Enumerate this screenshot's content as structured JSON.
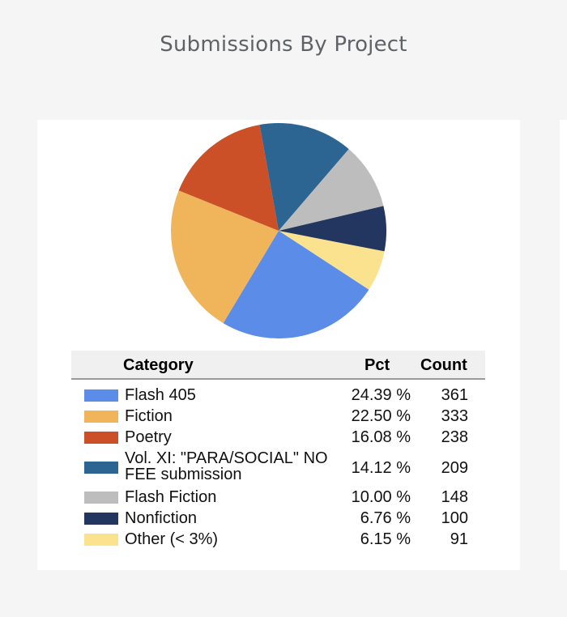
{
  "page": {
    "title": "Submissions By Project"
  },
  "legend": {
    "header_category": "Category",
    "header_pct": "Pct",
    "header_count": "Count"
  },
  "chart_data": {
    "type": "pie",
    "slices": [
      {
        "label": "Flash 405",
        "pct": "24.39 %",
        "count": "361",
        "value": 24.39,
        "color": "#5b8de8"
      },
      {
        "label": "Fiction",
        "pct": "22.50 %",
        "count": "333",
        "value": 22.5,
        "color": "#f0b55a"
      },
      {
        "label": "Poetry",
        "pct": "16.08 %",
        "count": "238",
        "value": 16.08,
        "color": "#cc5027"
      },
      {
        "label": "Vol. XI: \"PARA/SOCIAL\" NO FEE submission",
        "pct": "14.12 %",
        "count": "209",
        "value": 14.12,
        "color": "#2c6592"
      },
      {
        "label": "Flash Fiction",
        "pct": "10.00 %",
        "count": "148",
        "value": 10.0,
        "color": "#bdbdbd"
      },
      {
        "label": "Nonfiction",
        "pct": "6.76 %",
        "count": "100",
        "value": 6.76,
        "color": "#23365f"
      },
      {
        "label": "Other (< 3%)",
        "pct": "6.15 %",
        "count": "91",
        "value": 6.15,
        "color": "#fae28f"
      }
    ]
  }
}
